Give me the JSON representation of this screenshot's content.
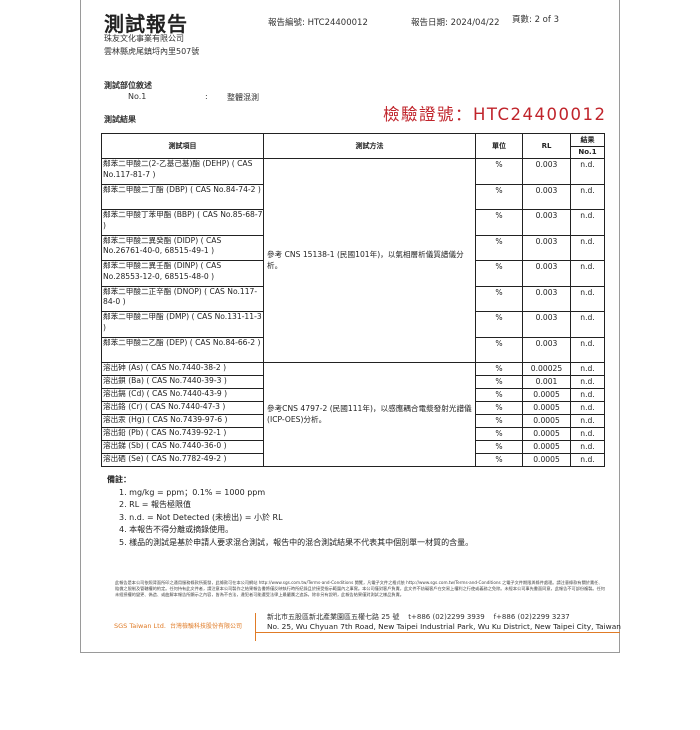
{
  "header": {
    "title": "測試報告",
    "company": "珠友文化事業有限公司",
    "address": "雲林縣虎尾鎮埒內里507號",
    "report_no": "報告編號: HTC24400012",
    "report_date": "報告日期: 2024/04/22",
    "page": "頁數: 2 of 3"
  },
  "section": {
    "part_label": "測試部位敘述",
    "sample_no": "No.1",
    "colon": ":",
    "sample_desc": "整體混測",
    "results_label": "測試結果",
    "cert_no": "檢驗證號：HTC24400012"
  },
  "table": {
    "headers": {
      "item": "測試項目",
      "method": "測試方法",
      "unit": "單位",
      "rl": "RL",
      "result": "結果",
      "no1": "No.1"
    },
    "method_a": "參考 CNS 15138-1 (民國101年)，以氣相層析儀質譜儀分析。",
    "method_b": "參考CNS 4797-2 (民國111年)，以感應耦合電漿發射光譜儀(ICP-OES)分析。",
    "phthalates": [
      {
        "item": "鄰苯二甲酸二(2-乙基己基)酯 (DEHP) ( CAS No.117-81-7 )",
        "unit": "%",
        "rl": "0.003",
        "result": "n.d."
      },
      {
        "item": "鄰苯二甲酸二丁酯 (DBP) ( CAS No.84-74-2 )",
        "unit": "%",
        "rl": "0.003",
        "result": "n.d."
      },
      {
        "item": "鄰苯二甲酸丁苯甲酯 (BBP) ( CAS No.85-68-7 )",
        "unit": "%",
        "rl": "0.003",
        "result": "n.d."
      },
      {
        "item": "鄰苯二甲酸二異癸酯 (DIDP) ( CAS No.26761-40-0, 68515-49-1 )",
        "unit": "%",
        "rl": "0.003",
        "result": "n.d."
      },
      {
        "item": "鄰苯二甲酸二異壬酯 (DINP) ( CAS No.28553-12-0, 68515-48-0 )",
        "unit": "%",
        "rl": "0.003",
        "result": "n.d."
      },
      {
        "item": "鄰苯二甲酸二正辛酯 (DNOP) ( CAS No.117-84-0 )",
        "unit": "%",
        "rl": "0.003",
        "result": "n.d."
      },
      {
        "item": "鄰苯二甲酸二甲酯 (DMP) ( CAS No.131-11-3 )",
        "unit": "%",
        "rl": "0.003",
        "result": "n.d."
      },
      {
        "item": "鄰苯二甲酸二乙酯 (DEP) ( CAS No.84-66-2 )",
        "unit": "%",
        "rl": "0.003",
        "result": "n.d."
      }
    ],
    "metals": [
      {
        "item": "溶出砷 (As) ( CAS No.7440-38-2 )",
        "unit": "%",
        "rl": "0.00025",
        "result": "n.d."
      },
      {
        "item": "溶出鋇 (Ba) ( CAS No.7440-39-3 )",
        "unit": "%",
        "rl": "0.001",
        "result": "n.d."
      },
      {
        "item": "溶出鎘 (Cd) ( CAS No.7440-43-9 )",
        "unit": "%",
        "rl": "0.0005",
        "result": "n.d."
      },
      {
        "item": "溶出鉻 (Cr) ( CAS No.7440-47-3 )",
        "unit": "%",
        "rl": "0.0005",
        "result": "n.d."
      },
      {
        "item": "溶出汞 (Hg) ( CAS No.7439-97-6 )",
        "unit": "%",
        "rl": "0.0005",
        "result": "n.d."
      },
      {
        "item": "溶出鉛 (Pb) ( CAS No.7439-92-1 )",
        "unit": "%",
        "rl": "0.0005",
        "result": "n.d."
      },
      {
        "item": "溶出銻 (Sb) ( CAS No.7440-36-0 )",
        "unit": "%",
        "rl": "0.0005",
        "result": "n.d."
      },
      {
        "item": "溶出硒 (Se) ( CAS No.7782-49-2 )",
        "unit": "%",
        "rl": "0.0005",
        "result": "n.d."
      }
    ]
  },
  "notes": {
    "heading": "備註：",
    "items": [
      "1. mg/kg = ppm；0.1% = 1000 ppm",
      "2. RL = 報告極限值",
      "3. n.d. = Not Detected (未檢出) = 小於 RL",
      "4. 本報告不得分離或摘錄使用。",
      "5. 樣品的測試是基於申請人要求混合測試，報告中的混合測試結果不代表其中個別單一材質的含量。"
    ]
  },
  "footer": {
    "legal": "此報告是本公司依照背面所印之通用服務條款所簽發，此條款可在本公司網站 http://www.sgs.com.tw/Terms-and-Conditions 閱覽，凡電子文件之格式依 http://www.sgs.com.tw/Terms-and-Conditions 之電子文件期限與條件處理。請注意條款有關於責任、賠償之限制及管轄權的約定。任何持有此文件者，請注意本公司製作之結果報告書將僅反映執行時所紀錄且於接受指示範圍內之事實。本公司僅對客戶負責，此文件不妨礙客戶在交易上權利之行使或義務之免除。未經本公司事先書面同意，此報告不可部份複製。任何未經授權的變更、偽造、或曲解本報告所顯示之內容，皆為不合法，違犯者可能遭受法律上最嚴厲之追訴。除非另有說明，此報告結果僅對測試之樣品負責。",
    "company_en": "SGS Taiwan Ltd.",
    "company_zh": "台灣檢驗科技股份有限公司",
    "address_zh": "新北市五股區新北產業園區五權七路 25 號",
    "phone": "t+886 (02)2299 3939",
    "fax": "f+886 (02)2299 3237",
    "address_en": "No. 25, Wu Chyuan 7th Road, New Taipei Industrial Park, Wu Ku District, New Taipei City, Taiwan",
    "brand_color": "#e07b26"
  },
  "colors": {
    "cert": "#c0242b"
  }
}
